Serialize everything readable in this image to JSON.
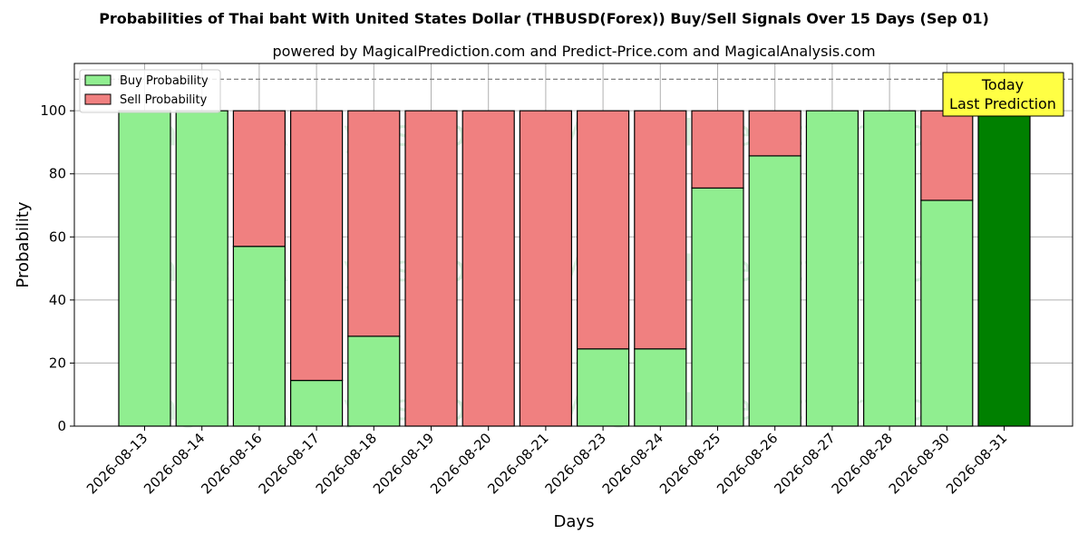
{
  "chart_data": {
    "type": "bar",
    "stacked": true,
    "title": "Probabilities of Thai baht With United States Dollar (THBUSD(Forex)) Buy/Sell Signals Over 15 Days (Sep 01)",
    "subtitle": "powered by MagicalPrediction.com and Predict-Price.com and MagicalAnalysis.com",
    "xlabel": "Days",
    "ylabel": "Probability",
    "ylim": [
      0,
      115
    ],
    "yticks": [
      0,
      20,
      40,
      60,
      80,
      100
    ],
    "reference_line": 110,
    "grid": true,
    "legend_position": "top-left",
    "categories": [
      "2026-08-13",
      "2026-08-14",
      "2026-08-16",
      "2026-08-17",
      "2026-08-18",
      "2026-08-19",
      "2026-08-20",
      "2026-08-21",
      "2026-08-23",
      "2026-08-24",
      "2026-08-25",
      "2026-08-26",
      "2026-08-27",
      "2026-08-28",
      "2026-08-30",
      "2026-08-31"
    ],
    "series": [
      {
        "name": "Buy Probability",
        "color": "#90ee90",
        "values": [
          100,
          100,
          57,
          14.5,
          28.5,
          0,
          0,
          0,
          24.5,
          24.5,
          75.5,
          85.7,
          100,
          100,
          71.6,
          100
        ]
      },
      {
        "name": "Sell Probability",
        "color": "#f08080",
        "values": [
          0,
          0,
          43,
          85.5,
          71.5,
          100,
          100,
          100,
          75.5,
          75.5,
          24.5,
          14.3,
          0,
          0,
          28.4,
          0
        ]
      }
    ],
    "highlight": {
      "index": 15,
      "color": "#008000"
    },
    "annotation": {
      "lines": [
        "Today",
        "Last Prediction"
      ],
      "background": "#ffff44"
    },
    "watermarks": [
      "MagicalAnalysis.com",
      "MagicalPrediction.com"
    ]
  }
}
